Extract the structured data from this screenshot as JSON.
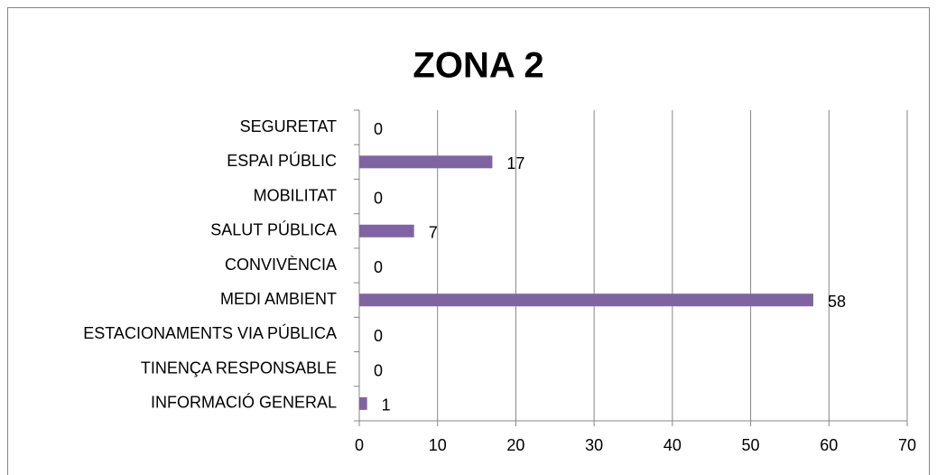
{
  "chart_data": {
    "type": "bar",
    "title": "ZONA 2",
    "categories": [
      "SEGURETAT",
      "ESPAI PÚBLIC",
      "MOBILITAT",
      "SALUT PÚBLICA",
      "CONVIVÈNCIA",
      "MEDI AMBIENT",
      "ESTACIONAMENTS VIA PÚBLICA",
      "TINENÇA RESPONSABLE",
      "INFORMACIÓ GENERAL"
    ],
    "values": [
      0,
      17,
      0,
      7,
      0,
      58,
      0,
      0,
      1
    ],
    "color": "#8064a2",
    "xlim": [
      0,
      70
    ],
    "xticks": [
      0,
      10,
      20,
      30,
      40,
      50,
      60,
      70
    ],
    "grid": true
  }
}
